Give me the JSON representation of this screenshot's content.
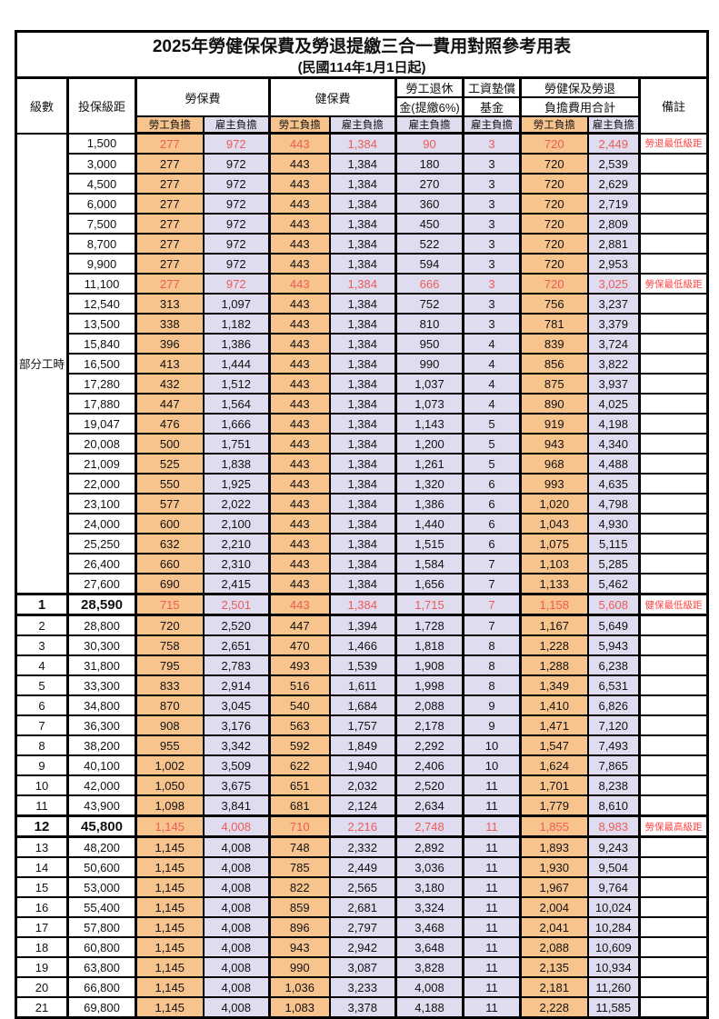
{
  "title": "2025年勞健保保費及勞退提繳三合一費用對照參考用表",
  "subtitle": "(民國114年1月1日起)",
  "colors": {
    "employee_column_bg": "#F8C48E",
    "employer_column_bg": "#DFDCF0",
    "highlight_value_red": "#EC5B57",
    "remark_red": "#FF4545",
    "border_black": "#000000"
  },
  "header": {
    "level": "級數",
    "bracket": "投保級距",
    "labor_insurance": "勞保費",
    "health_insurance": "健保費",
    "pension_line1": "勞工退休",
    "pension_line2": "金(提繳6%)",
    "wage_fund_line1": "工資墊償",
    "wage_fund_line2": "基金",
    "total_line1": "勞健保及勞退",
    "total_line2": "負擔費用合計",
    "remark": "備註",
    "employee": "勞工負擔",
    "employer": "雇主負擔"
  },
  "part_time_label": "部分工時",
  "part_time_rowspan": 23,
  "rows": [
    {
      "level": "",
      "bracket": "1,500",
      "labor_emp": "277",
      "labor_er": "972",
      "health_emp": "443",
      "health_er": "1,384",
      "pension": "90",
      "fund": "3",
      "total_emp": "720",
      "total_er": "2,449",
      "remark": "勞退最低級距",
      "red": true,
      "bold": false
    },
    {
      "level": "",
      "bracket": "3,000",
      "labor_emp": "277",
      "labor_er": "972",
      "health_emp": "443",
      "health_er": "1,384",
      "pension": "180",
      "fund": "3",
      "total_emp": "720",
      "total_er": "2,539",
      "remark": "",
      "red": false,
      "bold": false
    },
    {
      "level": "",
      "bracket": "4,500",
      "labor_emp": "277",
      "labor_er": "972",
      "health_emp": "443",
      "health_er": "1,384",
      "pension": "270",
      "fund": "3",
      "total_emp": "720",
      "total_er": "2,629",
      "remark": "",
      "red": false,
      "bold": false
    },
    {
      "level": "",
      "bracket": "6,000",
      "labor_emp": "277",
      "labor_er": "972",
      "health_emp": "443",
      "health_er": "1,384",
      "pension": "360",
      "fund": "3",
      "total_emp": "720",
      "total_er": "2,719",
      "remark": "",
      "red": false,
      "bold": false
    },
    {
      "level": "",
      "bracket": "7,500",
      "labor_emp": "277",
      "labor_er": "972",
      "health_emp": "443",
      "health_er": "1,384",
      "pension": "450",
      "fund": "3",
      "total_emp": "720",
      "total_er": "2,809",
      "remark": "",
      "red": false,
      "bold": false
    },
    {
      "level": "",
      "bracket": "8,700",
      "labor_emp": "277",
      "labor_er": "972",
      "health_emp": "443",
      "health_er": "1,384",
      "pension": "522",
      "fund": "3",
      "total_emp": "720",
      "total_er": "2,881",
      "remark": "",
      "red": false,
      "bold": false
    },
    {
      "level": "",
      "bracket": "9,900",
      "labor_emp": "277",
      "labor_er": "972",
      "health_emp": "443",
      "health_er": "1,384",
      "pension": "594",
      "fund": "3",
      "total_emp": "720",
      "total_er": "2,953",
      "remark": "",
      "red": false,
      "bold": false
    },
    {
      "level": "",
      "bracket": "11,100",
      "labor_emp": "277",
      "labor_er": "972",
      "health_emp": "443",
      "health_er": "1,384",
      "pension": "666",
      "fund": "3",
      "total_emp": "720",
      "total_er": "3,025",
      "remark": "勞保最低級距",
      "red": true,
      "bold": false
    },
    {
      "level": "",
      "bracket": "12,540",
      "labor_emp": "313",
      "labor_er": "1,097",
      "health_emp": "443",
      "health_er": "1,384",
      "pension": "752",
      "fund": "3",
      "total_emp": "756",
      "total_er": "3,237",
      "remark": "",
      "red": false,
      "bold": false
    },
    {
      "level": "",
      "bracket": "13,500",
      "labor_emp": "338",
      "labor_er": "1,182",
      "health_emp": "443",
      "health_er": "1,384",
      "pension": "810",
      "fund": "3",
      "total_emp": "781",
      "total_er": "3,379",
      "remark": "",
      "red": false,
      "bold": false
    },
    {
      "level": "",
      "bracket": "15,840",
      "labor_emp": "396",
      "labor_er": "1,386",
      "health_emp": "443",
      "health_er": "1,384",
      "pension": "950",
      "fund": "4",
      "total_emp": "839",
      "total_er": "3,724",
      "remark": "",
      "red": false,
      "bold": false
    },
    {
      "level": "",
      "bracket": "16,500",
      "labor_emp": "413",
      "labor_er": "1,444",
      "health_emp": "443",
      "health_er": "1,384",
      "pension": "990",
      "fund": "4",
      "total_emp": "856",
      "total_er": "3,822",
      "remark": "",
      "red": false,
      "bold": false
    },
    {
      "level": "",
      "bracket": "17,280",
      "labor_emp": "432",
      "labor_er": "1,512",
      "health_emp": "443",
      "health_er": "1,384",
      "pension": "1,037",
      "fund": "4",
      "total_emp": "875",
      "total_er": "3,937",
      "remark": "",
      "red": false,
      "bold": false
    },
    {
      "level": "",
      "bracket": "17,880",
      "labor_emp": "447",
      "labor_er": "1,564",
      "health_emp": "443",
      "health_er": "1,384",
      "pension": "1,073",
      "fund": "4",
      "total_emp": "890",
      "total_er": "4,025",
      "remark": "",
      "red": false,
      "bold": false
    },
    {
      "level": "",
      "bracket": "19,047",
      "labor_emp": "476",
      "labor_er": "1,666",
      "health_emp": "443",
      "health_er": "1,384",
      "pension": "1,143",
      "fund": "5",
      "total_emp": "919",
      "total_er": "4,198",
      "remark": "",
      "red": false,
      "bold": false
    },
    {
      "level": "",
      "bracket": "20,008",
      "labor_emp": "500",
      "labor_er": "1,751",
      "health_emp": "443",
      "health_er": "1,384",
      "pension": "1,200",
      "fund": "5",
      "total_emp": "943",
      "total_er": "4,340",
      "remark": "",
      "red": false,
      "bold": false
    },
    {
      "level": "",
      "bracket": "21,009",
      "labor_emp": "525",
      "labor_er": "1,838",
      "health_emp": "443",
      "health_er": "1,384",
      "pension": "1,261",
      "fund": "5",
      "total_emp": "968",
      "total_er": "4,488",
      "remark": "",
      "red": false,
      "bold": false
    },
    {
      "level": "",
      "bracket": "22,000",
      "labor_emp": "550",
      "labor_er": "1,925",
      "health_emp": "443",
      "health_er": "1,384",
      "pension": "1,320",
      "fund": "6",
      "total_emp": "993",
      "total_er": "4,635",
      "remark": "",
      "red": false,
      "bold": false
    },
    {
      "level": "",
      "bracket": "23,100",
      "labor_emp": "577",
      "labor_er": "2,022",
      "health_emp": "443",
      "health_er": "1,384",
      "pension": "1,386",
      "fund": "6",
      "total_emp": "1,020",
      "total_er": "4,798",
      "remark": "",
      "red": false,
      "bold": false
    },
    {
      "level": "",
      "bracket": "24,000",
      "labor_emp": "600",
      "labor_er": "2,100",
      "health_emp": "443",
      "health_er": "1,384",
      "pension": "1,440",
      "fund": "6",
      "total_emp": "1,043",
      "total_er": "4,930",
      "remark": "",
      "red": false,
      "bold": false
    },
    {
      "level": "",
      "bracket": "25,250",
      "labor_emp": "632",
      "labor_er": "2,210",
      "health_emp": "443",
      "health_er": "1,384",
      "pension": "1,515",
      "fund": "6",
      "total_emp": "1,075",
      "total_er": "5,115",
      "remark": "",
      "red": false,
      "bold": false
    },
    {
      "level": "",
      "bracket": "26,400",
      "labor_emp": "660",
      "labor_er": "2,310",
      "health_emp": "443",
      "health_er": "1,384",
      "pension": "1,584",
      "fund": "7",
      "total_emp": "1,103",
      "total_er": "5,285",
      "remark": "",
      "red": false,
      "bold": false
    },
    {
      "level": "",
      "bracket": "27,600",
      "labor_emp": "690",
      "labor_er": "2,415",
      "health_emp": "443",
      "health_er": "1,384",
      "pension": "1,656",
      "fund": "7",
      "total_emp": "1,133",
      "total_er": "5,462",
      "remark": "",
      "red": false,
      "bold": false
    },
    {
      "level": "1",
      "bracket": "28,590",
      "labor_emp": "715",
      "labor_er": "2,501",
      "health_emp": "443",
      "health_er": "1,384",
      "pension": "1,715",
      "fund": "7",
      "total_emp": "1,158",
      "total_er": "5,608",
      "remark": "健保最低級距",
      "red": true,
      "bold": true
    },
    {
      "level": "2",
      "bracket": "28,800",
      "labor_emp": "720",
      "labor_er": "2,520",
      "health_emp": "447",
      "health_er": "1,394",
      "pension": "1,728",
      "fund": "7",
      "total_emp": "1,167",
      "total_er": "5,649",
      "remark": "",
      "red": false,
      "bold": false
    },
    {
      "level": "3",
      "bracket": "30,300",
      "labor_emp": "758",
      "labor_er": "2,651",
      "health_emp": "470",
      "health_er": "1,466",
      "pension": "1,818",
      "fund": "8",
      "total_emp": "1,228",
      "total_er": "5,943",
      "remark": "",
      "red": false,
      "bold": false
    },
    {
      "level": "4",
      "bracket": "31,800",
      "labor_emp": "795",
      "labor_er": "2,783",
      "health_emp": "493",
      "health_er": "1,539",
      "pension": "1,908",
      "fund": "8",
      "total_emp": "1,288",
      "total_er": "6,238",
      "remark": "",
      "red": false,
      "bold": false
    },
    {
      "level": "5",
      "bracket": "33,300",
      "labor_emp": "833",
      "labor_er": "2,914",
      "health_emp": "516",
      "health_er": "1,611",
      "pension": "1,998",
      "fund": "8",
      "total_emp": "1,349",
      "total_er": "6,531",
      "remark": "",
      "red": false,
      "bold": false
    },
    {
      "level": "6",
      "bracket": "34,800",
      "labor_emp": "870",
      "labor_er": "3,045",
      "health_emp": "540",
      "health_er": "1,684",
      "pension": "2,088",
      "fund": "9",
      "total_emp": "1,410",
      "total_er": "6,826",
      "remark": "",
      "red": false,
      "bold": false
    },
    {
      "level": "7",
      "bracket": "36,300",
      "labor_emp": "908",
      "labor_er": "3,176",
      "health_emp": "563",
      "health_er": "1,757",
      "pension": "2,178",
      "fund": "9",
      "total_emp": "1,471",
      "total_er": "7,120",
      "remark": "",
      "red": false,
      "bold": false
    },
    {
      "level": "8",
      "bracket": "38,200",
      "labor_emp": "955",
      "labor_er": "3,342",
      "health_emp": "592",
      "health_er": "1,849",
      "pension": "2,292",
      "fund": "10",
      "total_emp": "1,547",
      "total_er": "7,493",
      "remark": "",
      "red": false,
      "bold": false
    },
    {
      "level": "9",
      "bracket": "40,100",
      "labor_emp": "1,002",
      "labor_er": "3,509",
      "health_emp": "622",
      "health_er": "1,940",
      "pension": "2,406",
      "fund": "10",
      "total_emp": "1,624",
      "total_er": "7,865",
      "remark": "",
      "red": false,
      "bold": false
    },
    {
      "level": "10",
      "bracket": "42,000",
      "labor_emp": "1,050",
      "labor_er": "3,675",
      "health_emp": "651",
      "health_er": "2,032",
      "pension": "2,520",
      "fund": "11",
      "total_emp": "1,701",
      "total_er": "8,238",
      "remark": "",
      "red": false,
      "bold": false
    },
    {
      "level": "11",
      "bracket": "43,900",
      "labor_emp": "1,098",
      "labor_er": "3,841",
      "health_emp": "681",
      "health_er": "2,124",
      "pension": "2,634",
      "fund": "11",
      "total_emp": "1,779",
      "total_er": "8,610",
      "remark": "",
      "red": false,
      "bold": false
    },
    {
      "level": "12",
      "bracket": "45,800",
      "labor_emp": "1,145",
      "labor_er": "4,008",
      "health_emp": "710",
      "health_er": "2,216",
      "pension": "2,748",
      "fund": "11",
      "total_emp": "1,855",
      "total_er": "8,983",
      "remark": "勞保最高級距",
      "red": true,
      "bold": true
    },
    {
      "level": "13",
      "bracket": "48,200",
      "labor_emp": "1,145",
      "labor_er": "4,008",
      "health_emp": "748",
      "health_er": "2,332",
      "pension": "2,892",
      "fund": "11",
      "total_emp": "1,893",
      "total_er": "9,243",
      "remark": "",
      "red": false,
      "bold": false
    },
    {
      "level": "14",
      "bracket": "50,600",
      "labor_emp": "1,145",
      "labor_er": "4,008",
      "health_emp": "785",
      "health_er": "2,449",
      "pension": "3,036",
      "fund": "11",
      "total_emp": "1,930",
      "total_er": "9,504",
      "remark": "",
      "red": false,
      "bold": false
    },
    {
      "level": "15",
      "bracket": "53,000",
      "labor_emp": "1,145",
      "labor_er": "4,008",
      "health_emp": "822",
      "health_er": "2,565",
      "pension": "3,180",
      "fund": "11",
      "total_emp": "1,967",
      "total_er": "9,764",
      "remark": "",
      "red": false,
      "bold": false
    },
    {
      "level": "16",
      "bracket": "55,400",
      "labor_emp": "1,145",
      "labor_er": "4,008",
      "health_emp": "859",
      "health_er": "2,681",
      "pension": "3,324",
      "fund": "11",
      "total_emp": "2,004",
      "total_er": "10,024",
      "remark": "",
      "red": false,
      "bold": false
    },
    {
      "level": "17",
      "bracket": "57,800",
      "labor_emp": "1,145",
      "labor_er": "4,008",
      "health_emp": "896",
      "health_er": "2,797",
      "pension": "3,468",
      "fund": "11",
      "total_emp": "2,041",
      "total_er": "10,284",
      "remark": "",
      "red": false,
      "bold": false
    },
    {
      "level": "18",
      "bracket": "60,800",
      "labor_emp": "1,145",
      "labor_er": "4,008",
      "health_emp": "943",
      "health_er": "2,942",
      "pension": "3,648",
      "fund": "11",
      "total_emp": "2,088",
      "total_er": "10,609",
      "remark": "",
      "red": false,
      "bold": false
    },
    {
      "level": "19",
      "bracket": "63,800",
      "labor_emp": "1,145",
      "labor_er": "4,008",
      "health_emp": "990",
      "health_er": "3,087",
      "pension": "3,828",
      "fund": "11",
      "total_emp": "2,135",
      "total_er": "10,934",
      "remark": "",
      "red": false,
      "bold": false
    },
    {
      "level": "20",
      "bracket": "66,800",
      "labor_emp": "1,145",
      "labor_er": "4,008",
      "health_emp": "1,036",
      "health_er": "3,233",
      "pension": "4,008",
      "fund": "11",
      "total_emp": "2,181",
      "total_er": "11,260",
      "remark": "",
      "red": false,
      "bold": false
    },
    {
      "level": "21",
      "bracket": "69,800",
      "labor_emp": "1,145",
      "labor_er": "4,008",
      "health_emp": "1,083",
      "health_er": "3,378",
      "pension": "4,188",
      "fund": "11",
      "total_emp": "2,228",
      "total_er": "11,585",
      "remark": "",
      "red": false,
      "bold": false
    }
  ]
}
